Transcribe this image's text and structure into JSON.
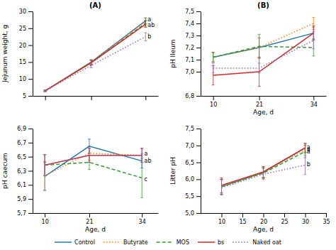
{
  "chart_data": [
    {
      "type": "line",
      "title": "(A)",
      "ylabel": "Jejunum weight, g",
      "x": [
        10,
        21,
        34
      ],
      "xlim": [
        7,
        37
      ],
      "ylim": [
        5,
        30
      ],
      "xticks": [
        10,
        21,
        34
      ],
      "yticks": [
        5,
        10,
        15,
        20,
        25,
        30
      ],
      "tick_labels": "y",
      "legend": "bottom",
      "series": [
        {
          "name": "Control",
          "line_style": "solid",
          "values": [
            6.5,
            15.0,
            27.2
          ],
          "errors": [
            0.2,
            0.7,
            0.9
          ]
        },
        {
          "name": "Butyrate",
          "line_style": "dotted",
          "values": [
            6.5,
            15.0,
            27.0
          ],
          "errors": [
            0.2,
            0.7,
            0.9
          ]
        },
        {
          "name": "MOS",
          "line_style": "dashed",
          "values": [
            6.5,
            14.8,
            26.5
          ],
          "errors": [
            0.2,
            0.7,
            0.9
          ]
        },
        {
          "name": "bs",
          "line_style": "solid",
          "values": [
            6.5,
            14.8,
            26.2
          ],
          "errors": [
            0.2,
            0.7,
            0.9
          ]
        },
        {
          "name": "Naked oat",
          "line_style": "dotted",
          "values": [
            6.5,
            14.0,
            22.5
          ],
          "errors": [
            0.2,
            0.7,
            1.2
          ]
        }
      ],
      "annotations": [
        {
          "text": "a",
          "x": 34.5,
          "y": 27.5
        },
        {
          "text": "ab",
          "x": 34.5,
          "y": 26.0
        },
        {
          "text": "b",
          "x": 34.5,
          "y": 22.5
        }
      ]
    },
    {
      "type": "line",
      "title": "(B)",
      "xlabel": "Age, d",
      "ylabel": "pH Ileum",
      "x": [
        10,
        21,
        34
      ],
      "xlim": [
        7,
        37
      ],
      "ylim": [
        6.8,
        7.5
      ],
      "xticks": [
        10,
        21,
        34
      ],
      "yticks": [
        {
          "value": 6.8,
          "label": "6,8"
        },
        {
          "value": 7.0,
          "label": "7,0"
        },
        {
          "value": 7.1,
          "label": "7,1"
        },
        {
          "value": 7.2,
          "label": "7,2"
        },
        {
          "value": 7.3,
          "label": "7,3"
        },
        {
          "value": 7.4,
          "label": "7,4"
        },
        {
          "value": 7.5,
          "label": "7,5"
        }
      ],
      "series": [
        {
          "name": "Control",
          "line_style": "solid",
          "values": [
            7.12,
            7.2,
            7.32
          ],
          "errors": [
            0.04,
            0.08,
            0.05
          ]
        },
        {
          "name": "Butyrate",
          "line_style": "dotted",
          "values": [
            7.12,
            7.2,
            7.4
          ],
          "errors": [
            0.04,
            0.08,
            0.05
          ]
        },
        {
          "name": "MOS",
          "line_style": "dashed",
          "values": [
            7.12,
            7.21,
            7.2
          ],
          "errors": [
            0.04,
            0.1,
            0.07
          ]
        },
        {
          "name": "bs",
          "line_style": "solid",
          "values": [
            6.97,
            7.0,
            7.32
          ],
          "errors": [
            0.08,
            0.12,
            0.06
          ]
        },
        {
          "name": "Naked oat",
          "line_style": "dotted",
          "values": [
            7.03,
            7.03,
            7.26
          ],
          "errors": [
            0.04,
            0.04,
            0.07
          ]
        }
      ]
    },
    {
      "type": "line",
      "xlabel": "Age, d",
      "ylabel": "pH caecum",
      "x": [
        10,
        21,
        34
      ],
      "xlim": [
        7,
        38
      ],
      "ylim": [
        5.7,
        6.9
      ],
      "xticks": [
        10,
        21,
        34
      ],
      "yticks": [
        {
          "value": 5.7,
          "label": "5,7"
        },
        {
          "value": 5.9,
          "label": "5,9"
        },
        {
          "value": 6.1,
          "label": "6,1"
        },
        {
          "value": 6.3,
          "label": "6,3"
        },
        {
          "value": 6.5,
          "label": "6,5"
        },
        {
          "value": 6.7,
          "label": "6,7"
        },
        {
          "value": 6.9,
          "label": "6,9"
        }
      ],
      "series": [
        {
          "name": "Control",
          "line_style": "solid",
          "values": [
            6.22,
            6.65,
            6.44
          ],
          "errors": [
            0.2,
            0.1,
            0.1
          ]
        },
        {
          "name": "Butyrate",
          "line_style": "dotted",
          "values": [
            6.23,
            6.55,
            6.52
          ],
          "errors": [
            0.2,
            0.1,
            0.1
          ]
        },
        {
          "name": "MOS",
          "line_style": "dashed",
          "values": [
            6.38,
            6.42,
            6.2
          ],
          "errors": [
            0.15,
            0.1,
            0.28
          ]
        },
        {
          "name": "bs",
          "line_style": "solid",
          "values": [
            6.38,
            6.52,
            6.52
          ],
          "errors": [
            0.15,
            0.1,
            0.1
          ]
        },
        {
          "name": "Naked oat",
          "line_style": "dotted",
          "values": [
            6.38,
            6.52,
            6.52
          ],
          "errors": [
            0.15,
            0.1,
            0.1
          ]
        }
      ],
      "annotations": [
        {
          "text": "a",
          "x": 34.6,
          "y": 6.54
        },
        {
          "text": "ab",
          "x": 34.6,
          "y": 6.44
        },
        {
          "text": "c",
          "x": 34.6,
          "y": 6.18
        }
      ]
    },
    {
      "type": "line",
      "xlabel": "Age, d",
      "ylabel": "Litter pH",
      "x": [
        10,
        20,
        30
      ],
      "xlim": [
        5,
        35
      ],
      "ylim": [
        5.0,
        7.5
      ],
      "xticks": [
        10,
        15,
        20,
        25,
        30,
        35
      ],
      "yticks": [
        {
          "value": 5.0,
          "label": "5,0"
        },
        {
          "value": 5.5,
          "label": "5,5"
        },
        {
          "value": 6.0,
          "label": "6,0"
        },
        {
          "value": 6.5,
          "label": "6,5"
        },
        {
          "value": 7.0,
          "label": "7,0"
        },
        {
          "value": 7.5,
          "label": "7,5"
        }
      ],
      "series": [
        {
          "name": "Control",
          "line_style": "solid",
          "values": [
            5.78,
            6.2,
            6.93
          ],
          "errors": [
            0.22,
            0.16,
            0.13
          ]
        },
        {
          "name": "Butyrate",
          "line_style": "dotted",
          "values": [
            5.78,
            6.2,
            6.88
          ],
          "errors": [
            0.22,
            0.16,
            0.13
          ]
        },
        {
          "name": "MOS",
          "line_style": "dashed",
          "values": [
            5.78,
            6.18,
            6.82
          ],
          "errors": [
            0.22,
            0.16,
            0.18
          ]
        },
        {
          "name": "bs",
          "line_style": "solid",
          "values": [
            5.82,
            6.22,
            6.93
          ],
          "errors": [
            0.22,
            0.16,
            0.13
          ]
        },
        {
          "name": "Naked oat",
          "line_style": "dotted",
          "values": [
            5.75,
            6.15,
            6.42
          ],
          "errors": [
            0.22,
            0.16,
            0.28
          ]
        }
      ],
      "annotations": [
        {
          "text": "a",
          "x": 30.4,
          "y": 6.95
        },
        {
          "text": "a",
          "x": 30.4,
          "y": 6.88
        },
        {
          "text": "a",
          "x": 30.4,
          "y": 6.82
        },
        {
          "text": "b",
          "x": 30.4,
          "y": 6.44
        }
      ]
    }
  ]
}
